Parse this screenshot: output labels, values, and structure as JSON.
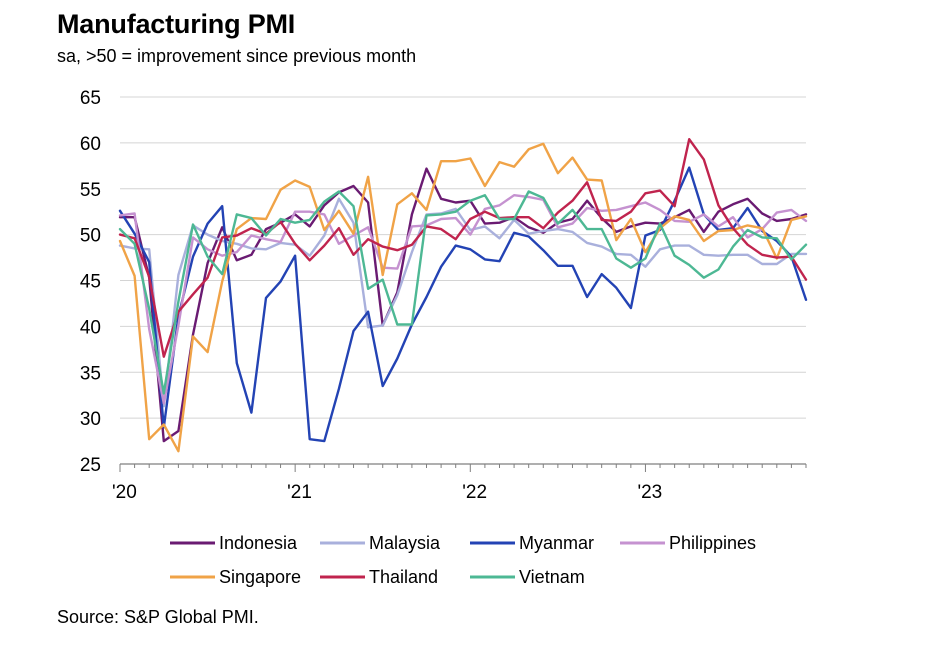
{
  "title": "Manufacturing PMI",
  "subtitle": "sa, >50 = improvement since previous month",
  "source": "Source: S&P Global PMI.",
  "chart_data": {
    "type": "line",
    "title": "Manufacturing PMI",
    "subtitle": "sa, >50 = improvement since previous month",
    "xlabel": "",
    "ylabel": "",
    "ylim": [
      25,
      65
    ],
    "yticks": [
      25,
      30,
      35,
      40,
      45,
      50,
      55,
      60,
      65
    ],
    "xlim": [
      "2020-01",
      "2023-12"
    ],
    "xticks": [
      {
        "label": "'20",
        "month": "2020-01"
      },
      {
        "label": "'21",
        "month": "2021-01"
      },
      {
        "label": "'22",
        "month": "2022-01"
      },
      {
        "label": "'23",
        "month": "2023-01"
      }
    ],
    "grid": "horizontal",
    "legend_position": "bottom",
    "series": [
      {
        "name": "Indonesia",
        "color": "#6a1b72",
        "values": [
          51.9,
          51.9,
          45.3,
          27.5,
          28.6,
          39.1,
          46.9,
          50.8,
          47.2,
          47.8,
          50.6,
          51.3,
          52.2,
          50.9,
          53.2,
          54.6,
          55.3,
          53.5,
          40.1,
          43.7,
          52.2,
          57.2,
          53.9,
          53.5,
          53.7,
          51.2,
          51.3,
          51.9,
          50.8,
          50.2,
          51.3,
          51.7,
          53.7,
          51.8,
          50.3,
          50.9,
          51.3,
          51.2,
          51.9,
          52.7,
          50.3,
          52.5,
          53.3,
          53.9,
          52.3,
          51.5,
          51.7,
          52.2
        ]
      },
      {
        "name": "Malaysia",
        "color": "#a9b0dc",
        "values": [
          48.8,
          48.5,
          48.4,
          31.3,
          45.6,
          51.0,
          50.0,
          49.3,
          49.0,
          48.5,
          48.4,
          49.1,
          48.9,
          47.7,
          49.9,
          53.9,
          51.3,
          39.9,
          40.1,
          43.4,
          48.1,
          52.2,
          52.3,
          52.8,
          50.5,
          50.9,
          49.6,
          51.6,
          50.1,
          50.4,
          50.6,
          50.3,
          49.1,
          48.7,
          47.9,
          47.8,
          46.5,
          48.4,
          48.8,
          48.8,
          47.8,
          47.7,
          47.8,
          47.8,
          46.8,
          46.8,
          47.9,
          47.9
        ]
      },
      {
        "name": "Myanmar",
        "color": "#2343b4",
        "values": [
          52.6,
          50.1,
          47.0,
          29.0,
          41.1,
          47.6,
          51.2,
          53.1,
          36.0,
          30.6,
          43.1,
          44.9,
          47.7,
          27.7,
          27.5,
          33.2,
          39.5,
          41.6,
          33.5,
          36.5,
          40.2,
          43.2,
          46.5,
          48.8,
          48.4,
          47.3,
          47.1,
          50.2,
          49.8,
          48.3,
          46.6,
          46.6,
          43.2,
          45.7,
          44.2,
          42.0,
          49.9,
          50.5,
          53.7,
          57.3,
          52.2,
          50.5,
          50.7,
          52.9,
          50.4,
          49.3,
          47.6,
          42.9
        ]
      },
      {
        "name": "Philippines",
        "color": "#c592d0",
        "values": [
          52.1,
          52.3,
          39.7,
          31.6,
          40.1,
          49.7,
          48.4,
          47.7,
          48.1,
          49.9,
          49.5,
          49.2,
          52.5,
          52.5,
          52.2,
          49.0,
          49.9,
          50.8,
          46.4,
          46.3,
          50.9,
          51.0,
          51.7,
          51.8,
          50.0,
          52.8,
          53.2,
          54.3,
          54.1,
          53.8,
          50.8,
          51.2,
          52.9,
          52.6,
          52.7,
          53.1,
          53.5,
          52.7,
          51.5,
          51.4,
          52.2,
          50.9,
          51.9,
          49.7,
          50.6,
          52.4,
          52.7,
          51.5
        ]
      },
      {
        "name": "Singapore",
        "color": "#f0a347",
        "values": [
          49.3,
          45.5,
          27.7,
          29.3,
          26.4,
          38.9,
          37.2,
          44.9,
          50.6,
          51.8,
          51.7,
          54.9,
          55.9,
          55.2,
          50.5,
          52.6,
          50.1,
          56.3,
          45.6,
          53.3,
          54.5,
          52.7,
          58.0,
          58.0,
          58.3,
          55.3,
          57.9,
          57.4,
          59.3,
          59.9,
          56.7,
          58.4,
          56.0,
          55.9,
          49.4,
          51.7,
          48.1,
          50.7,
          52.0,
          51.6,
          49.3,
          50.4,
          50.5,
          51.0,
          50.7,
          47.4,
          51.6,
          52.0
        ]
      },
      {
        "name": "Thailand",
        "color": "#c0244e",
        "values": [
          50.0,
          49.6,
          45.4,
          36.7,
          41.6,
          43.5,
          45.3,
          49.7,
          49.9,
          50.7,
          50.1,
          51.4,
          49.0,
          47.2,
          48.8,
          50.7,
          47.8,
          49.5,
          48.7,
          48.3,
          48.9,
          50.9,
          50.6,
          49.5,
          51.7,
          52.5,
          51.8,
          51.9,
          51.9,
          50.7,
          52.4,
          53.7,
          55.7,
          51.6,
          51.5,
          52.5,
          54.5,
          54.8,
          53.1,
          60.4,
          58.2,
          53.2,
          50.7,
          48.9,
          47.8,
          47.5,
          47.6,
          45.1
        ]
      },
      {
        "name": "Vietnam",
        "color": "#4db894",
        "values": [
          50.6,
          49.0,
          41.9,
          32.7,
          42.7,
          51.1,
          47.6,
          45.7,
          52.2,
          51.8,
          49.9,
          51.7,
          51.3,
          51.6,
          53.6,
          54.7,
          53.1,
          44.1,
          45.1,
          40.2,
          40.2,
          52.1,
          52.2,
          52.5,
          53.7,
          54.3,
          51.7,
          51.7,
          54.7,
          54.0,
          51.2,
          52.7,
          50.6,
          50.6,
          47.4,
          46.4,
          47.4,
          51.2,
          47.7,
          46.7,
          45.3,
          46.2,
          48.7,
          50.5,
          49.7,
          49.6,
          47.3,
          48.9
        ]
      }
    ]
  }
}
